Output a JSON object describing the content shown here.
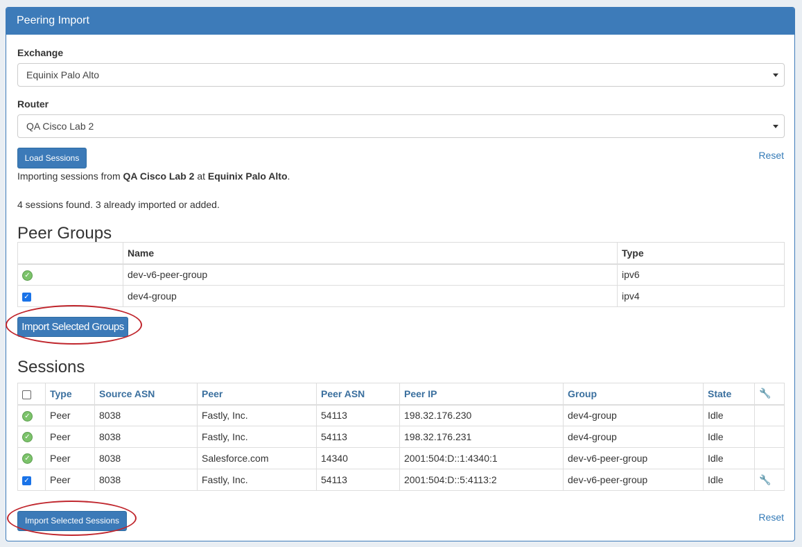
{
  "panel": {
    "title": "Peering Import"
  },
  "form": {
    "exchange_label": "Exchange",
    "exchange_value": "Equinix Palo Alto",
    "router_label": "Router",
    "router_value": "QA Cisco Lab 2",
    "load_button": "Load Sessions",
    "reset": "Reset"
  },
  "status": {
    "prefix": "Importing sessions from ",
    "router": "QA Cisco Lab 2",
    "mid": " at ",
    "exchange": "Equinix Palo Alto",
    "suffix": ".",
    "found": "4 sessions found. 3 already imported or added."
  },
  "peer_groups": {
    "title": "Peer Groups",
    "headers": [
      "",
      "Name",
      "Type"
    ],
    "rows": [
      {
        "status": "imported",
        "name": "dev-v6-peer-group",
        "type": "ipv6"
      },
      {
        "status": "checked",
        "name": "dev4-group",
        "type": "ipv4"
      }
    ],
    "import_button": "Import Selected Groups"
  },
  "sessions": {
    "title": "Sessions",
    "headers": [
      "Type",
      "Source ASN",
      "Peer",
      "Peer ASN",
      "Peer IP",
      "Group",
      "State"
    ],
    "rows": [
      {
        "status": "imported",
        "type": "Peer",
        "source_asn": "8038",
        "peer": "Fastly, Inc.",
        "peer_asn": "54113",
        "peer_ip": "198.32.176.230",
        "group": "dev4-group",
        "state": "Idle",
        "tool": false
      },
      {
        "status": "imported",
        "type": "Peer",
        "source_asn": "8038",
        "peer": "Fastly, Inc.",
        "peer_asn": "54113",
        "peer_ip": "198.32.176.231",
        "group": "dev4-group",
        "state": "Idle",
        "tool": false
      },
      {
        "status": "imported",
        "type": "Peer",
        "source_asn": "8038",
        "peer": "Salesforce.com",
        "peer_asn": "14340",
        "peer_ip": "2001:504:D::1:4340:1",
        "group": "dev-v6-peer-group",
        "state": "Idle",
        "tool": false
      },
      {
        "status": "checked",
        "type": "Peer",
        "source_asn": "8038",
        "peer": "Fastly, Inc.",
        "peer_asn": "54113",
        "peer_ip": "2001:504:D::5:4113:2",
        "group": "dev-v6-peer-group",
        "state": "Idle",
        "tool": true
      }
    ],
    "import_button": "Import Selected Sessions",
    "reset": "Reset"
  },
  "colors": {
    "header": "#3d7bb9",
    "link": "#337ab7",
    "annotation": "#c0262d",
    "ok": "#7cc36b"
  }
}
